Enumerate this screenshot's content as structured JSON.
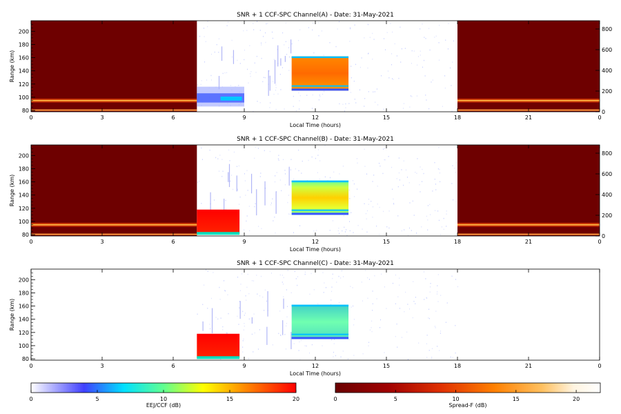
{
  "chart_data": [
    {
      "type": "heatmap",
      "title": "SNR + 1 CCF-SPC Channel(A) - Date: 31-May-2021",
      "xlabel": "Local Time (hours)",
      "ylabel": "Range (km)",
      "xlim": [
        0,
        24
      ],
      "ylim": [
        78,
        216
      ],
      "x_ticks": [
        "0",
        "3",
        "6",
        "9",
        "12",
        "15",
        "18",
        "21",
        "0"
      ],
      "y_ticks": [
        "80",
        "100",
        "120",
        "140",
        "160",
        "180",
        "200"
      ],
      "right_ylim": [
        0,
        880
      ],
      "right_ticks": [
        "0",
        "200",
        "400",
        "600",
        "800"
      ],
      "nighttime_spread_f": {
        "x_ranges": [
          [
            0,
            7
          ],
          [
            18,
            24
          ]
        ],
        "layer_km": [
          92,
          98
        ]
      },
      "daytime_eej": {
        "x": [
          7,
          9
        ],
        "range_km": [
          86,
          116
        ]
      },
      "daytime_echo_block": {
        "x": [
          11,
          13.4
        ],
        "range_km": [
          110,
          162
        ]
      }
    },
    {
      "type": "heatmap",
      "title": "SNR + 1 CCF-SPC Channel(B) - Date: 31-May-2021",
      "xlabel": "Local Time (hours)",
      "ylabel": "Range (km)",
      "xlim": [
        0,
        24
      ],
      "ylim": [
        78,
        216
      ],
      "x_ticks": [
        "0",
        "3",
        "6",
        "9",
        "12",
        "15",
        "18",
        "21",
        "0"
      ],
      "y_ticks": [
        "80",
        "100",
        "120",
        "140",
        "160",
        "180",
        "200"
      ],
      "right_ylim": [
        0,
        880
      ],
      "right_ticks": [
        "0",
        "200",
        "400",
        "600",
        "800"
      ],
      "nighttime_spread_f": {
        "x_ranges": [
          [
            0,
            7
          ],
          [
            18,
            24
          ]
        ],
        "layer_km": [
          92,
          98
        ]
      },
      "daytime_eej": {
        "x": [
          7,
          8.8
        ],
        "range_km": [
          80,
          118
        ]
      },
      "daytime_echo_block": {
        "x": [
          11,
          13.4
        ],
        "range_km": [
          110,
          162
        ]
      }
    },
    {
      "type": "heatmap",
      "title": "SNR + 1 CCF-SPC Channel(C) - Date: 31-May-2021",
      "xlabel": "Local Time (hours)",
      "ylabel": "Range (km)",
      "xlim": [
        0,
        24
      ],
      "ylim": [
        78,
        216
      ],
      "x_ticks": [
        "0",
        "3",
        "6",
        "9",
        "12",
        "15",
        "18",
        "21",
        "0"
      ],
      "y_ticks": [
        "80",
        "100",
        "120",
        "140",
        "160",
        "180",
        "200"
      ],
      "daytime_eej": {
        "x": [
          7,
          8.8
        ],
        "range_km": [
          80,
          118
        ]
      },
      "daytime_echo_block": {
        "x": [
          11,
          13.4
        ],
        "range_km": [
          110,
          162
        ]
      }
    }
  ],
  "colorbars": [
    {
      "label": "EEJ/CCF (dB)",
      "ticks": [
        "0",
        "5",
        "10",
        "15",
        "20"
      ],
      "range": [
        0,
        20
      ],
      "colors": [
        "#ffffff",
        "#4040ff",
        "#00e0ff",
        "#60ff90",
        "#ffff00",
        "#ff8000",
        "#ff0000"
      ]
    },
    {
      "label": "Spread-F (dB)",
      "ticks": [
        "0",
        "5",
        "10",
        "15",
        "20"
      ],
      "range": [
        0,
        22
      ],
      "colors": [
        "#6a0000",
        "#a00000",
        "#e03000",
        "#ff8000",
        "#ffc060",
        "#fff4e0",
        "#ffffff"
      ]
    }
  ]
}
